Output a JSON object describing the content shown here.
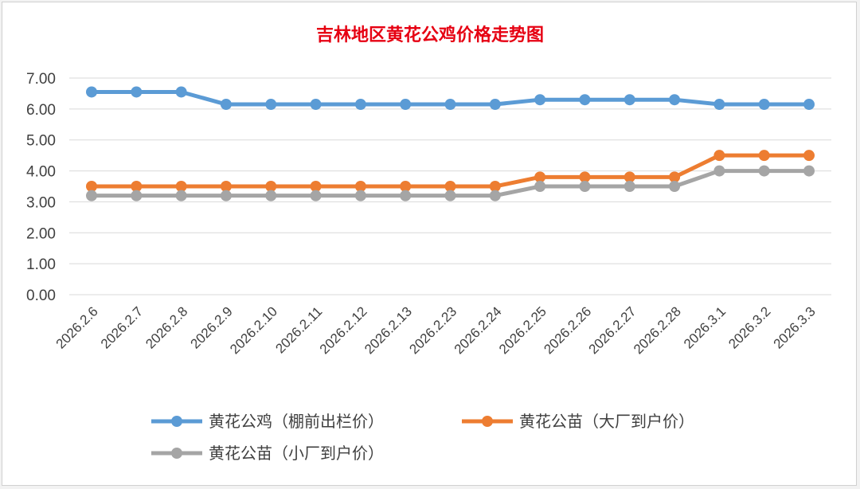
{
  "chart_data": {
    "type": "line",
    "title": "吉林地区黄花公鸡价格走势图",
    "xlabel": "",
    "ylabel": "",
    "categories": [
      "2026.2.6",
      "2026.2.7",
      "2026.2.8",
      "2026.2.9",
      "2026.2.10",
      "2026.2.11",
      "2026.2.12",
      "2026.2.13",
      "2026.2.23",
      "2026.2.24",
      "2026.2.25",
      "2026.2.26",
      "2026.2.27",
      "2026.2.28",
      "2026.3.1",
      "2026.3.2",
      "2026.3.3"
    ],
    "ylim": [
      0,
      7
    ],
    "yticks": [
      "0.00",
      "1.00",
      "2.00",
      "3.00",
      "4.00",
      "5.00",
      "6.00",
      "7.00"
    ],
    "grid": true,
    "legend_position": "bottom",
    "series": [
      {
        "name": "黄花公鸡（棚前出栏价）",
        "color": "#5b9bd5",
        "values": [
          6.55,
          6.55,
          6.55,
          6.15,
          6.15,
          6.15,
          6.15,
          6.15,
          6.15,
          6.15,
          6.3,
          6.3,
          6.3,
          6.3,
          6.15,
          6.15,
          6.15
        ]
      },
      {
        "name": "黄花公苗（大厂到户价）",
        "color": "#ed7d31",
        "values": [
          3.5,
          3.5,
          3.5,
          3.5,
          3.5,
          3.5,
          3.5,
          3.5,
          3.5,
          3.5,
          3.8,
          3.8,
          3.8,
          3.8,
          4.5,
          4.5,
          4.5
        ]
      },
      {
        "name": "黄花公苗（小厂到户价）",
        "color": "#a5a5a5",
        "values": [
          3.2,
          3.2,
          3.2,
          3.2,
          3.2,
          3.2,
          3.2,
          3.2,
          3.2,
          3.2,
          3.5,
          3.5,
          3.5,
          3.5,
          4.0,
          4.0,
          4.0
        ]
      }
    ]
  },
  "colors": {
    "title": "#e60012",
    "grid": "#d9d9d9",
    "axis_text": "#404040"
  }
}
